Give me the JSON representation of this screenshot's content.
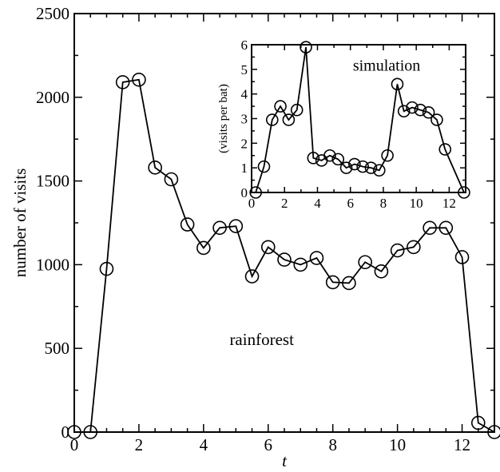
{
  "chart_data": [
    {
      "type": "line",
      "xlabel": "t",
      "ylabel": "number of visits",
      "xlim": [
        0,
        13
      ],
      "ylim": [
        0,
        2500
      ],
      "xticks": [
        0,
        2,
        4,
        6,
        8,
        10,
        12
      ],
      "yticks": [
        0,
        500,
        1000,
        1500,
        2000,
        2500
      ],
      "annotation": "rainforest",
      "markers": "open-circle",
      "series": [
        {
          "x": [
            0,
            0.5,
            1,
            1.5,
            2,
            2.5,
            3,
            3.5,
            4,
            4.5,
            5,
            5.5,
            6,
            6.5,
            7,
            7.5,
            8,
            8.5,
            9,
            9.5,
            10,
            10.5,
            11,
            11.5,
            12,
            12.5,
            13
          ],
          "values": [
            0,
            0,
            975,
            2090,
            2105,
            1580,
            1510,
            1240,
            1100,
            1220,
            1230,
            930,
            1105,
            1030,
            1000,
            1040,
            895,
            890,
            1015,
            960,
            1085,
            1105,
            1220,
            1220,
            1045,
            55,
            0
          ]
        }
      ]
    },
    {
      "type": "line",
      "xlabel": "",
      "ylabel": "(visits per bat)",
      "xlim": [
        0,
        13
      ],
      "ylim": [
        0,
        6
      ],
      "xticks": [
        0,
        2,
        4,
        6,
        8,
        10,
        12
      ],
      "yticks": [
        0,
        1,
        2,
        3,
        4,
        5,
        6
      ],
      "annotation": "simulation",
      "markers": "open-circle",
      "series": [
        {
          "x": [
            0.25,
            0.75,
            1.25,
            1.75,
            2.25,
            2.75,
            3.3,
            3.75,
            4.25,
            4.75,
            5.25,
            5.75,
            6.25,
            6.75,
            7.25,
            7.75,
            8.25,
            8.85,
            9.25,
            9.75,
            10.25,
            10.75,
            11.25,
            11.75,
            12.9
          ],
          "values": [
            0,
            1.05,
            2.95,
            3.5,
            2.95,
            3.35,
            5.9,
            1.4,
            1.3,
            1.5,
            1.35,
            1.0,
            1.15,
            1.05,
            1.0,
            0.9,
            1.5,
            4.4,
            3.3,
            3.45,
            3.35,
            3.25,
            2.95,
            1.75,
            0
          ]
        }
      ]
    }
  ]
}
